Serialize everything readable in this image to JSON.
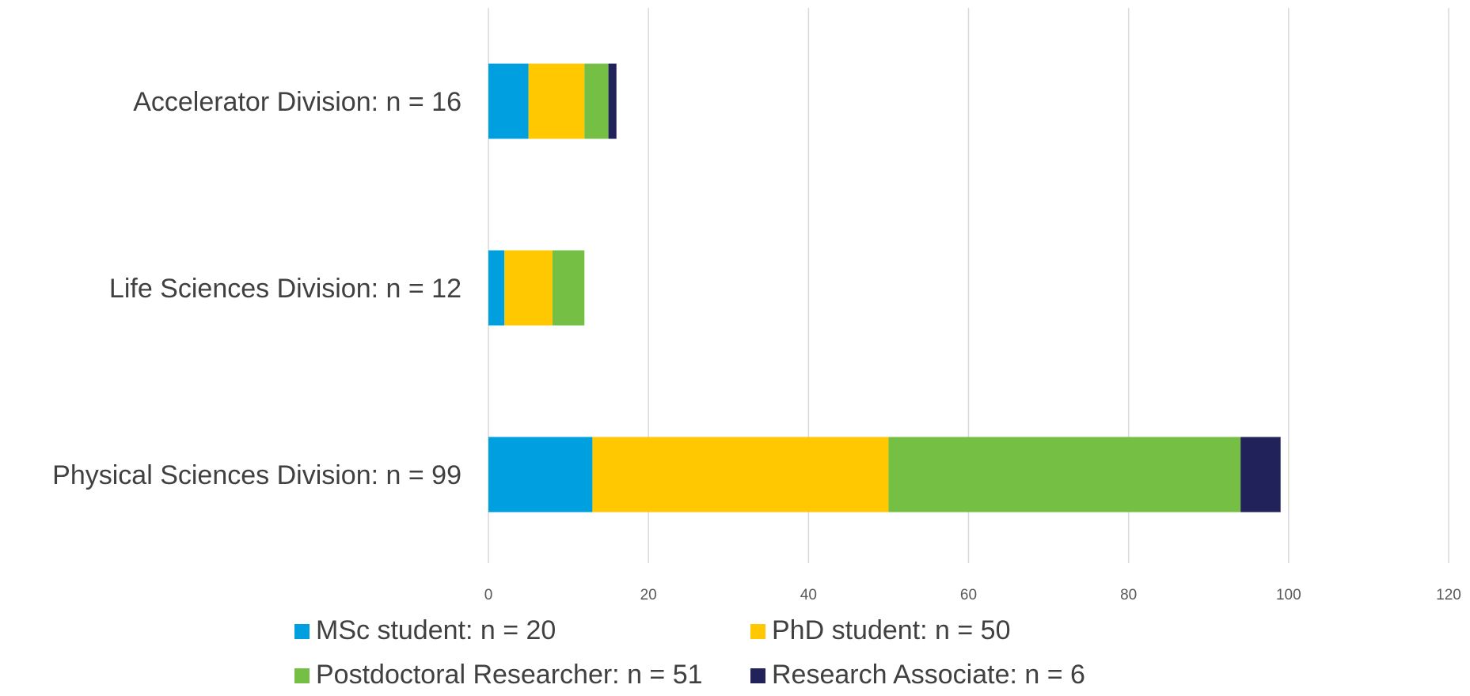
{
  "chart_data": {
    "type": "bar",
    "orientation": "horizontal",
    "stacked": true,
    "categories": [
      "Accelerator Division: n = 16",
      "Life Sciences Division: n = 12",
      "Physical Sciences Division: n = 99"
    ],
    "series": [
      {
        "name": "MSc student: n = 20",
        "color": "#00a0e0",
        "values": [
          5,
          2,
          13
        ]
      },
      {
        "name": "PhD student: n = 50",
        "color": "#ffc800",
        "values": [
          7,
          6,
          37
        ]
      },
      {
        "name": "Postdoctoral Researcher: n = 51",
        "color": "#74bf44",
        "values": [
          3,
          4,
          44
        ]
      },
      {
        "name": "Research Associate: n = 6",
        "color": "#22225a",
        "values": [
          1,
          0,
          5
        ]
      }
    ],
    "xlim": [
      0,
      120
    ],
    "xticks": [
      "0",
      "20",
      "40",
      "60",
      "80",
      "100",
      "120"
    ],
    "grid": "vertical",
    "legend_position": "bottom",
    "title": "",
    "xlabel": "",
    "ylabel": ""
  }
}
